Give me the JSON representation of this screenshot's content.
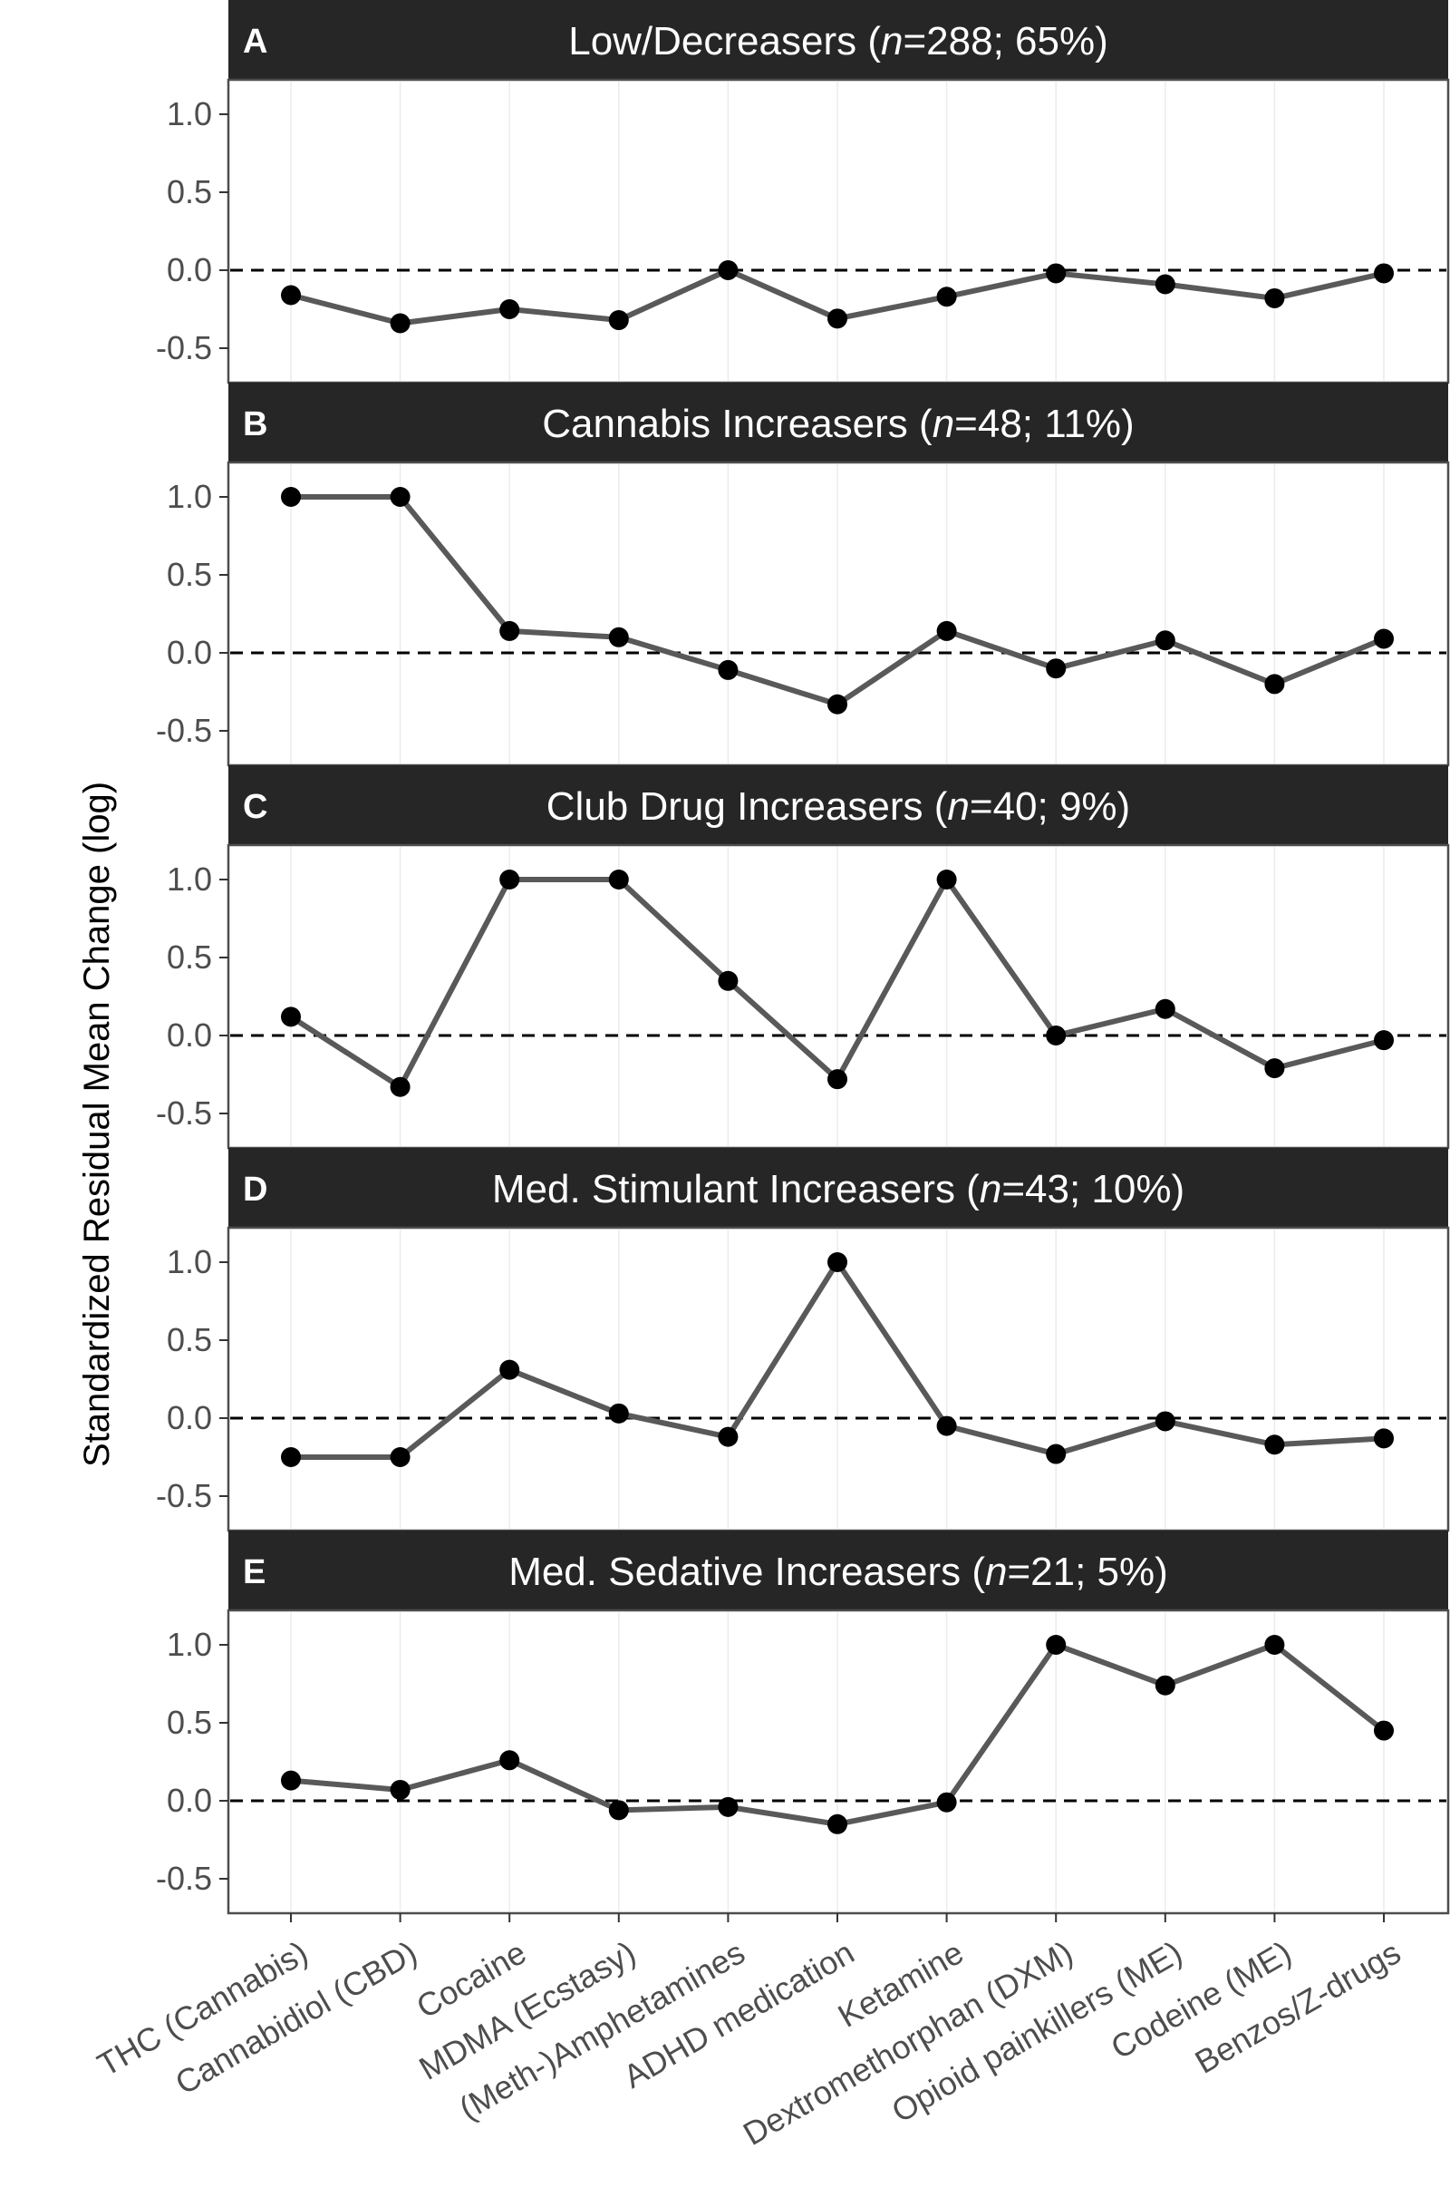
{
  "chart_data": {
    "type": "line",
    "ylabel": "Standardized Residual Mean Change (log)",
    "categories": [
      "THC (Cannabis)",
      "Cannabidiol (CBD)",
      "Cocaine",
      "MDMA (Ecstasy)",
      "(Meth-)Amphetamines",
      "ADHD medication",
      "Ketamine",
      "Dextromethorphan (DXM)",
      "Opioid painkillers (ME)",
      "Codeine (ME)",
      "Benzos/Z-drugs"
    ],
    "ylim": [
      -0.5,
      1.0
    ],
    "yticks": [
      "1.0",
      "0.5",
      "0.0",
      "-0.5"
    ],
    "reference_line": 0,
    "panels": [
      {
        "letter": "A",
        "title_prefix": "Low/Decreasers (",
        "title_n": "n",
        "title_suffix": "=288; 65%)",
        "values": [
          -0.16,
          -0.34,
          -0.25,
          -0.32,
          0.0,
          -0.31,
          -0.17,
          -0.02,
          -0.09,
          -0.18,
          -0.02
        ]
      },
      {
        "letter": "B",
        "title_prefix": "Cannabis Increasers (",
        "title_n": "n",
        "title_suffix": "=48; 11%)",
        "values": [
          1.0,
          1.0,
          0.14,
          0.1,
          -0.11,
          -0.33,
          0.14,
          -0.1,
          0.08,
          -0.2,
          0.09
        ]
      },
      {
        "letter": "C",
        "title_prefix": "Club Drug Increasers (",
        "title_n": "n",
        "title_suffix": "=40; 9%)",
        "values": [
          0.12,
          -0.33,
          1.0,
          1.0,
          0.35,
          -0.28,
          1.0,
          0.0,
          0.17,
          -0.21,
          -0.03
        ]
      },
      {
        "letter": "D",
        "title_prefix": "Med. Stimulant Increasers (",
        "title_n": "n",
        "title_suffix": "=43; 10%)",
        "values": [
          -0.25,
          -0.25,
          0.31,
          0.03,
          -0.12,
          1.0,
          -0.05,
          -0.23,
          -0.02,
          -0.17,
          -0.13
        ]
      },
      {
        "letter": "E",
        "title_prefix": "Med. Sedative Increasers (",
        "title_n": "n",
        "title_suffix": "=21; 5%)",
        "values": [
          0.13,
          0.07,
          0.26,
          -0.06,
          -0.04,
          -0.15,
          -0.01,
          1.0,
          0.74,
          1.0,
          0.45
        ]
      }
    ]
  }
}
